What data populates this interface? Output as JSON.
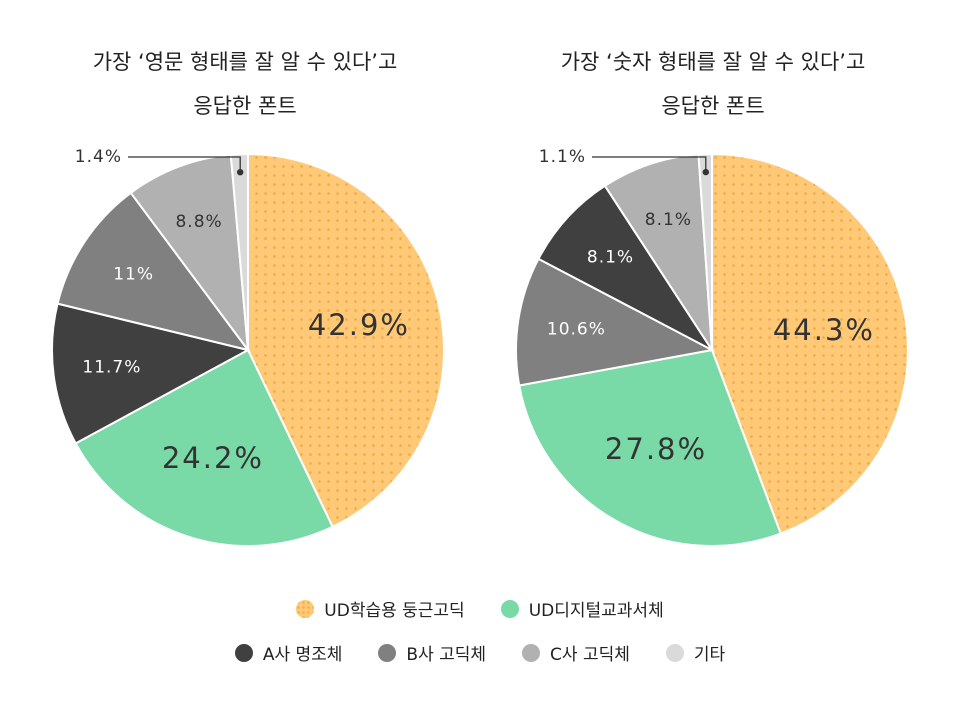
{
  "colors": {
    "ud_rounded": "#FFC978",
    "ud_rounded_dot": "#F2A93C",
    "ud_digital": "#79D9A7",
    "a_myeongjo": "#404040",
    "b_gothic": "#808080",
    "c_gothic": "#B1B1B1",
    "etc": "#DADADA"
  },
  "legend": [
    {
      "label": "UD학습용 둥근고딕",
      "color_key": "ud_rounded",
      "pattern": "dots"
    },
    {
      "label": "UD디지털교과서체",
      "color_key": "ud_digital"
    },
    {
      "label": "A사 명조체",
      "color_key": "a_myeongjo"
    },
    {
      "label": "B사 고딕체",
      "color_key": "b_gothic"
    },
    {
      "label": "C사 고딕체",
      "color_key": "c_gothic"
    },
    {
      "label": "기타",
      "color_key": "etc"
    }
  ],
  "chart_data": [
    {
      "type": "pie",
      "title": "가장 ‘영문 형태를 잘 알 수 있다’고 응답한 폰트",
      "title_lines": [
        "가장 ‘영문 형태를 잘 알 수 있다’고",
        "응답한 폰트"
      ],
      "start": "12 o'clock, clockwise",
      "slices": [
        {
          "label": "UD학습용 둥근고딕",
          "value": 42.9,
          "display": "42.9%",
          "color_key": "ud_rounded"
        },
        {
          "label": "UD디지털교과서체",
          "value": 24.2,
          "display": "24.2%",
          "color_key": "ud_digital"
        },
        {
          "label": "A사 명조체",
          "value": 11.7,
          "display": "11.7%",
          "color_key": "a_myeongjo"
        },
        {
          "label": "B사 고딕체",
          "value": 11,
          "display": "11%",
          "color_key": "b_gothic"
        },
        {
          "label": "C사 고딕체",
          "value": 8.8,
          "display": "8.8%",
          "color_key": "c_gothic"
        },
        {
          "label": "기타",
          "value": 1.4,
          "display": "1.4%",
          "color_key": "etc",
          "callout": true
        }
      ]
    },
    {
      "type": "pie",
      "title": "가장 ‘숫자 형태를 잘 알 수 있다’고 응답한 폰트",
      "title_lines": [
        "가장 ‘숫자 형태를 잘 알 수 있다’고",
        "응답한 폰트"
      ],
      "start": "12 o'clock, clockwise",
      "slices": [
        {
          "label": "UD학습용 둥근고딕",
          "value": 44.3,
          "display": "44.3%",
          "color_key": "ud_rounded"
        },
        {
          "label": "UD디지털교과서체",
          "value": 27.8,
          "display": "27.8%",
          "color_key": "ud_digital"
        },
        {
          "label": "B사 고딕체",
          "value": 10.6,
          "display": "10.6%",
          "color_key": "b_gothic"
        },
        {
          "label": "A사 명조체",
          "value": 8.1,
          "display": "8.1%",
          "color_key": "a_myeongjo"
        },
        {
          "label": "C사 고딕체",
          "value": 8.1,
          "display": "8.1%",
          "color_key": "c_gothic"
        },
        {
          "label": "기타",
          "value": 1.1,
          "display": "1.1%",
          "color_key": "etc",
          "callout": true
        }
      ]
    }
  ]
}
